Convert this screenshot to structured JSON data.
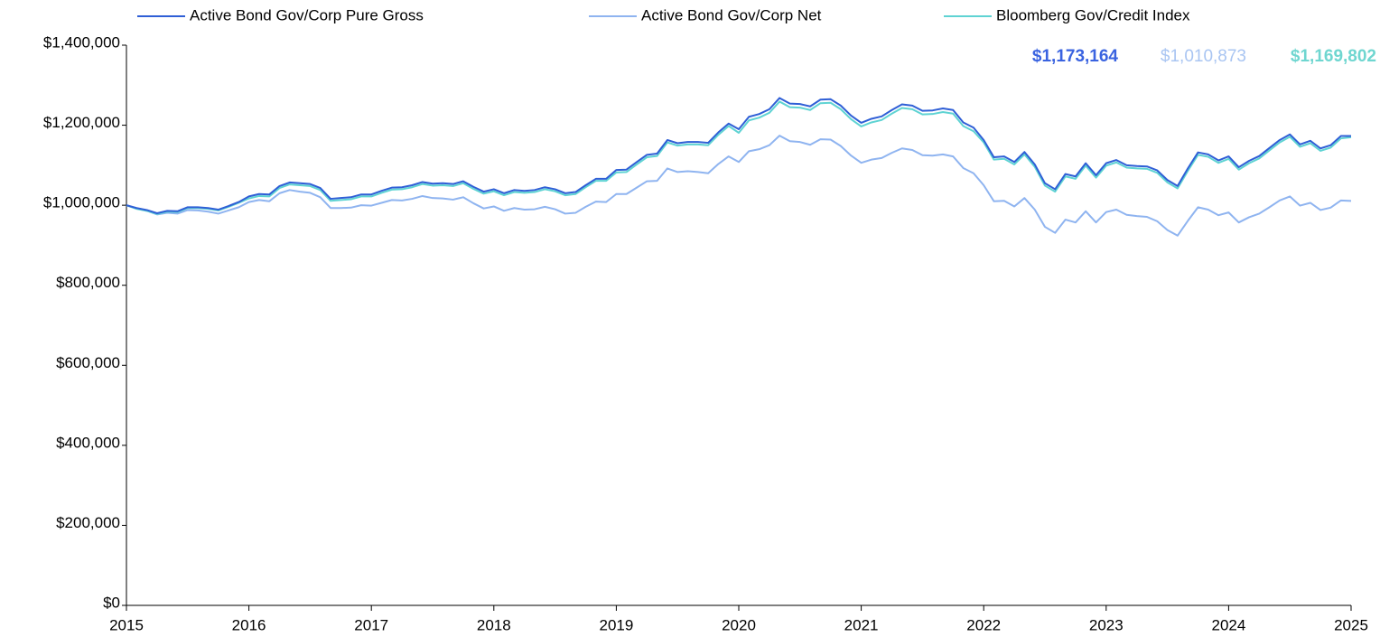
{
  "chart_data": {
    "type": "line",
    "legend": "top",
    "xlim": [
      2015,
      2025
    ],
    "xticks": [
      2015,
      2016,
      2017,
      2018,
      2019,
      2020,
      2021,
      2022,
      2023,
      2024,
      2025
    ],
    "ylim": [
      0,
      1400000
    ],
    "yticks": [
      {
        "value": 0,
        "label": "$0"
      },
      {
        "value": 200000,
        "label": "$200,000"
      },
      {
        "value": 400000,
        "label": "$400,000"
      },
      {
        "value": 600000,
        "label": "$600,000"
      },
      {
        "value": 800000,
        "label": "$800,000"
      },
      {
        "value": 1000000,
        "label": "$1,000,000"
      },
      {
        "value": 1200000,
        "label": "$1,200,000"
      },
      {
        "value": 1400000,
        "label": "$1,400,000"
      }
    ],
    "x": [
      2015,
      2015.083,
      2015.167,
      2015.25,
      2015.333,
      2015.417,
      2015.5,
      2015.583,
      2015.667,
      2015.75,
      2015.833,
      2015.917,
      2016,
      2016.083,
      2016.167,
      2016.25,
      2016.333,
      2016.417,
      2016.5,
      2016.583,
      2016.667,
      2016.75,
      2016.833,
      2016.917,
      2017,
      2017.083,
      2017.167,
      2017.25,
      2017.333,
      2017.417,
      2017.5,
      2017.583,
      2017.667,
      2017.75,
      2017.833,
      2017.917,
      2018,
      2018.083,
      2018.167,
      2018.25,
      2018.333,
      2018.417,
      2018.5,
      2018.583,
      2018.667,
      2018.75,
      2018.833,
      2018.917,
      2019,
      2019.083,
      2019.167,
      2019.25,
      2019.333,
      2019.417,
      2019.5,
      2019.583,
      2019.667,
      2019.75,
      2019.833,
      2019.917,
      2020,
      2020.083,
      2020.167,
      2020.25,
      2020.333,
      2020.417,
      2020.5,
      2020.583,
      2020.667,
      2020.75,
      2020.833,
      2020.917,
      2021,
      2021.083,
      2021.167,
      2021.25,
      2021.333,
      2021.417,
      2021.5,
      2021.583,
      2021.667,
      2021.75,
      2021.833,
      2021.917,
      2022,
      2022.083,
      2022.167,
      2022.25,
      2022.333,
      2022.417,
      2022.5,
      2022.583,
      2022.667,
      2022.75,
      2022.833,
      2022.917,
      2023,
      2023.083,
      2023.167,
      2023.25,
      2023.333,
      2023.417,
      2023.5,
      2023.583,
      2023.667,
      2023.75,
      2023.833,
      2023.917,
      2024,
      2024.083,
      2024.167,
      2024.25,
      2024.333,
      2024.417,
      2024.5,
      2024.583,
      2024.667,
      2024.75,
      2024.833,
      2024.917,
      2025
    ],
    "series": [
      {
        "name": "Active Bond Gov/Corp  Pure Gross",
        "color": "#2f5fd6",
        "end_label": "$1,173,164",
        "label_color": "#3a63e0",
        "label_bold": true,
        "values": [
          1000000,
          993000,
          988000,
          980000,
          986000,
          985000,
          995000,
          995000,
          993000,
          989000,
          998000,
          1008000,
          1022000,
          1028000,
          1027000,
          1048000,
          1057000,
          1055000,
          1053000,
          1043000,
          1016000,
          1018000,
          1020000,
          1027000,
          1027000,
          1036000,
          1044000,
          1045000,
          1050000,
          1058000,
          1054000,
          1055000,
          1053000,
          1060000,
          1046000,
          1034000,
          1040000,
          1030000,
          1038000,
          1036000,
          1038000,
          1045000,
          1040000,
          1030000,
          1033000,
          1050000,
          1066000,
          1066000,
          1088000,
          1089000,
          1108000,
          1126000,
          1129000,
          1163000,
          1155000,
          1158000,
          1158000,
          1156000,
          1182000,
          1204000,
          1190000,
          1221000,
          1228000,
          1240000,
          1268000,
          1254000,
          1253000,
          1247000,
          1264000,
          1265000,
          1249000,
          1224000,
          1206000,
          1216000,
          1222000,
          1238000,
          1252000,
          1249000,
          1236000,
          1237000,
          1242000,
          1238000,
          1207000,
          1194000,
          1163000,
          1120000,
          1122000,
          1108000,
          1133000,
          1102000,
          1055000,
          1040000,
          1078000,
          1072000,
          1105000,
          1075000,
          1105000,
          1113000,
          1100000,
          1098000,
          1097000,
          1087000,
          1063000,
          1048000,
          1092000,
          1132000,
          1127000,
          1112000,
          1122000,
          1095000,
          1111000,
          1123000,
          1143000,
          1163000,
          1177000,
          1152000,
          1161000,
          1142000,
          1150000,
          1173000,
          1173164
        ]
      },
      {
        "name": "Active Bond Gov/Corp  Net",
        "color": "#8fb4f0",
        "end_label": "$1,010,873",
        "label_color": "#a9c5f2",
        "label_bold": false,
        "values": [
          1000000,
          992000,
          986000,
          977000,
          981000,
          979000,
          988000,
          987000,
          984000,
          979000,
          987000,
          995000,
          1008000,
          1013000,
          1010000,
          1030000,
          1038000,
          1034000,
          1031000,
          1020000,
          993000,
          993000,
          994000,
          1000000,
          999000,
          1006000,
          1013000,
          1012000,
          1016000,
          1023000,
          1018000,
          1017000,
          1014000,
          1020000,
          1005000,
          992000,
          997000,
          986000,
          993000,
          989000,
          990000,
          996000,
          990000,
          979000,
          981000,
          996000,
          1009000,
          1008000,
          1028000,
          1028000,
          1044000,
          1060000,
          1061000,
          1092000,
          1083000,
          1085000,
          1083000,
          1080000,
          1103000,
          1122000,
          1108000,
          1135000,
          1140000,
          1150000,
          1174000,
          1160000,
          1158000,
          1151000,
          1165000,
          1164000,
          1148000,
          1124000,
          1106000,
          1114000,
          1118000,
          1131000,
          1142000,
          1138000,
          1125000,
          1124000,
          1127000,
          1122000,
          1093000,
          1080000,
          1050000,
          1010000,
          1011000,
          997000,
          1018000,
          989000,
          946000,
          931000,
          964000,
          957000,
          985000,
          957000,
          983000,
          989000,
          976000,
          973000,
          971000,
          960000,
          938000,
          924000,
          961000,
          995000,
          989000,
          975000,
          982000,
          957000,
          970000,
          979000,
          995000,
          1012000,
          1022000,
          999000,
          1006000,
          988000,
          994000,
          1012000,
          1010873
        ]
      },
      {
        "name": "Bloomberg Gov/Credit Index",
        "color": "#5fd3d3",
        "end_label": "$1,169,802",
        "label_color": "#6fd6d0",
        "label_bold": true,
        "values": [
          1000000,
          991000,
          986000,
          978000,
          984000,
          983000,
          993000,
          993000,
          991000,
          987000,
          996000,
          1006000,
          1017000,
          1023000,
          1022000,
          1043000,
          1052000,
          1050000,
          1048000,
          1038000,
          1011000,
          1013000,
          1015000,
          1022000,
          1022000,
          1031000,
          1039000,
          1040000,
          1045000,
          1053000,
          1049000,
          1050000,
          1048000,
          1055000,
          1041000,
          1029000,
          1035000,
          1025000,
          1033000,
          1031000,
          1033000,
          1040000,
          1035000,
          1025000,
          1028000,
          1045000,
          1061000,
          1061000,
          1082000,
          1083000,
          1102000,
          1120000,
          1123000,
          1157000,
          1149000,
          1152000,
          1152000,
          1150000,
          1176000,
          1198000,
          1181000,
          1212000,
          1219000,
          1231000,
          1259000,
          1245000,
          1244000,
          1238000,
          1255000,
          1256000,
          1240000,
          1215000,
          1197000,
          1207000,
          1213000,
          1229000,
          1243000,
          1240000,
          1227000,
          1228000,
          1233000,
          1229000,
          1198000,
          1185000,
          1157000,
          1114000,
          1116000,
          1102000,
          1127000,
          1096000,
          1049000,
          1034000,
          1072000,
          1066000,
          1099000,
          1069000,
          1099000,
          1107000,
          1094000,
          1092000,
          1091000,
          1081000,
          1057000,
          1042000,
          1086000,
          1126000,
          1121000,
          1106000,
          1116000,
          1089000,
          1105000,
          1117000,
          1137000,
          1157000,
          1171000,
          1146000,
          1155000,
          1136000,
          1144000,
          1167000,
          1169802
        ]
      }
    ]
  }
}
